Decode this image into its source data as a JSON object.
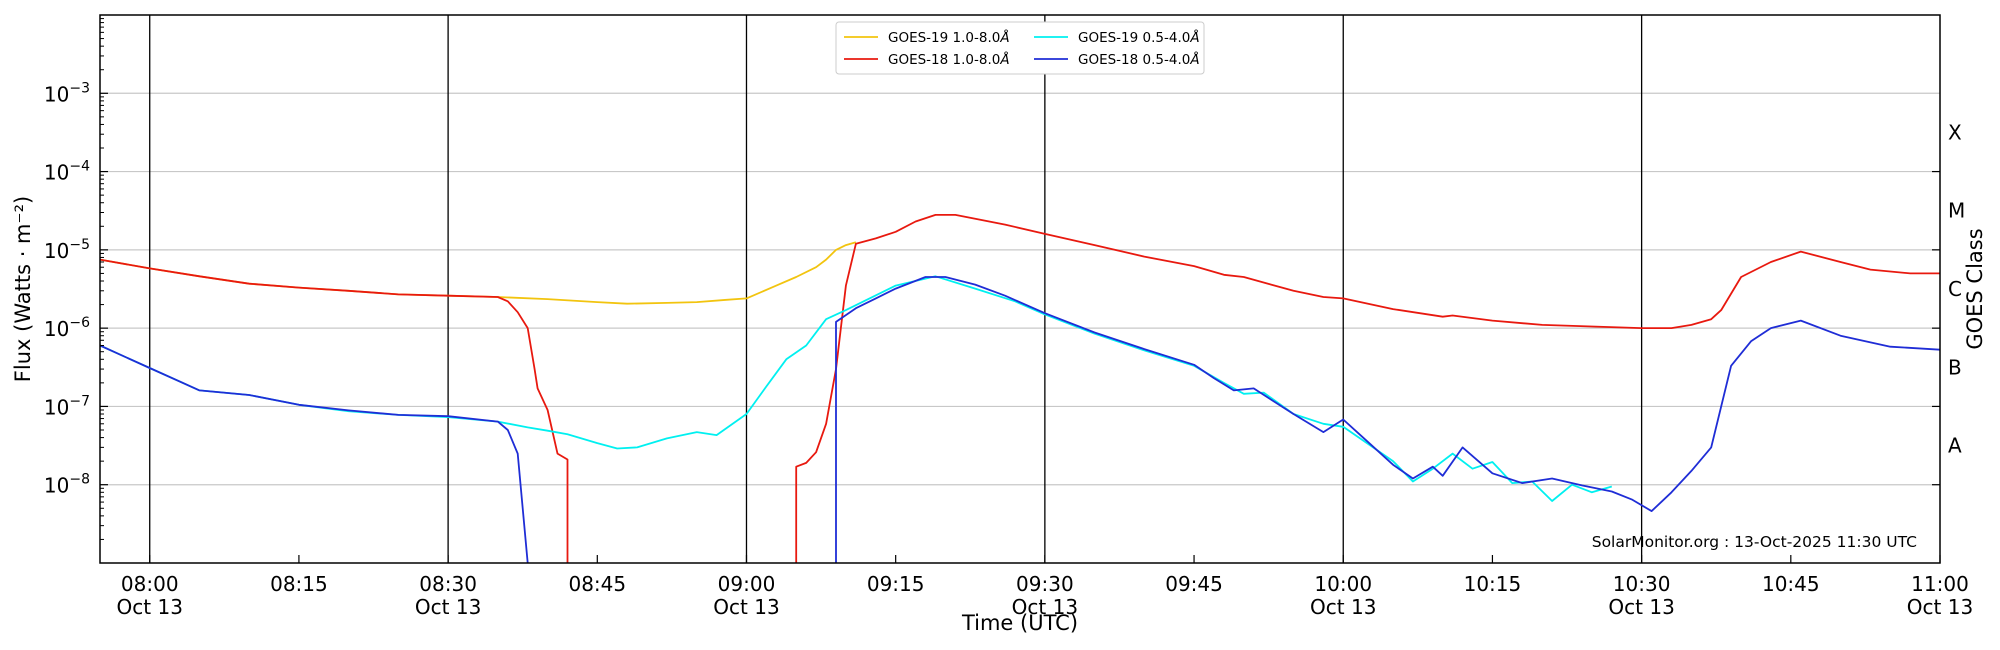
{
  "chart_data": {
    "type": "line",
    "x_range": [
      "2025-10-13T07:55",
      "2025-10-13T11:00"
    ],
    "ylim": [
      1e-09,
      0.01
    ],
    "y_scale": "log",
    "xlabel": "Time (UTC)",
    "ylabel": "Flux (Watts · m⁻²)",
    "y2label": "GOES Class",
    "credit": "SolarMonitor.org : 13-Oct-2025 11:30 UTC",
    "grid": "horizontal at decades",
    "legend_position": "top-center",
    "y_ticks": [
      {
        "exp": -3,
        "base": "10",
        "sup": "−3"
      },
      {
        "exp": -4,
        "base": "10",
        "sup": "−4"
      },
      {
        "exp": -5,
        "base": "10",
        "sup": "−5"
      },
      {
        "exp": -6,
        "base": "10",
        "sup": "−6"
      },
      {
        "exp": -7,
        "base": "10",
        "sup": "−7"
      },
      {
        "exp": -8,
        "base": "10",
        "sup": "−8"
      }
    ],
    "x_ticks": [
      {
        "time": "08:00",
        "label": "08:00",
        "date": "Oct 13",
        "major": true
      },
      {
        "time": "08:15",
        "label": "08:15",
        "date": "",
        "major": false
      },
      {
        "time": "08:30",
        "label": "08:30",
        "date": "Oct 13",
        "major": true
      },
      {
        "time": "08:45",
        "label": "08:45",
        "date": "",
        "major": false
      },
      {
        "time": "09:00",
        "label": "09:00",
        "date": "Oct 13",
        "major": true
      },
      {
        "time": "09:15",
        "label": "09:15",
        "date": "",
        "major": false
      },
      {
        "time": "09:30",
        "label": "09:30",
        "date": "Oct 13",
        "major": true
      },
      {
        "time": "09:45",
        "label": "09:45",
        "date": "",
        "major": false
      },
      {
        "time": "10:00",
        "label": "10:00",
        "date": "Oct 13",
        "major": true
      },
      {
        "time": "10:15",
        "label": "10:15",
        "date": "",
        "major": false
      },
      {
        "time": "10:30",
        "label": "10:30",
        "date": "Oct 13",
        "major": true
      },
      {
        "time": "10:45",
        "label": "10:45",
        "date": "",
        "major": false
      },
      {
        "time": "11:00",
        "label": "11:00",
        "date": "Oct 13",
        "major": true
      }
    ],
    "goes_classes": [
      {
        "label": "X",
        "flux": 0.0001
      },
      {
        "label": "M",
        "flux": 1e-05
      },
      {
        "label": "C",
        "flux": 1e-06
      },
      {
        "label": "B",
        "flux": 1e-07
      },
      {
        "label": "A",
        "flux": 1e-08
      }
    ],
    "series": [
      {
        "name": "GOES-19 1.0-8.0Å",
        "name_base": "GOES-19 1.0-8.0",
        "name_unit": "Å",
        "color": "#f2c40f",
        "points": [
          [
            "07:55",
            7.5e-06
          ],
          [
            "08:00",
            5.8e-06
          ],
          [
            "08:05",
            4.6e-06
          ],
          [
            "08:10",
            3.7e-06
          ],
          [
            "08:15",
            3.3e-06
          ],
          [
            "08:20",
            3e-06
          ],
          [
            "08:25",
            2.7e-06
          ],
          [
            "08:30",
            2.6e-06
          ],
          [
            "08:35",
            2.5e-06
          ],
          [
            "08:40",
            2.35e-06
          ],
          [
            "08:45",
            2.15e-06
          ],
          [
            "08:48",
            2.05e-06
          ],
          [
            "08:52",
            2.1e-06
          ],
          [
            "08:55",
            2.15e-06
          ],
          [
            "08:58",
            2.3e-06
          ],
          [
            "09:00",
            2.4e-06
          ],
          [
            "09:03",
            3.5e-06
          ],
          [
            "09:05",
            4.5e-06
          ],
          [
            "09:07",
            6e-06
          ],
          [
            "09:08",
            7.5e-06
          ],
          [
            "09:09",
            1e-05
          ],
          [
            "09:10",
            1.15e-05
          ],
          [
            "09:11",
            1.25e-05
          ]
        ]
      },
      {
        "name": "GOES-18 1.0-8.0Å",
        "name_base": "GOES-18 1.0-8.0",
        "name_unit": "Å",
        "color": "#e8190f",
        "segments": [
          [
            [
              "07:55",
              7.5e-06
            ],
            [
              "08:00",
              5.8e-06
            ],
            [
              "08:05",
              4.6e-06
            ],
            [
              "08:10",
              3.7e-06
            ],
            [
              "08:15",
              3.3e-06
            ],
            [
              "08:20",
              3e-06
            ],
            [
              "08:25",
              2.7e-06
            ],
            [
              "08:30",
              2.6e-06
            ],
            [
              "08:35",
              2.5e-06
            ],
            [
              "08:36",
              2.2e-06
            ],
            [
              "08:37",
              1.6e-06
            ],
            [
              "08:38",
              1e-06
            ],
            [
              "08:38.7",
              3e-07
            ],
            [
              "08:39",
              1.7e-07
            ],
            [
              "08:40",
              9e-08
            ],
            [
              "08:41",
              2.5e-08
            ],
            [
              "08:42",
              2.1e-08
            ],
            [
              "08:42",
              1e-09
            ]
          ],
          [
            [
              "09:05",
              1e-09
            ],
            [
              "09:05",
              1.7e-08
            ],
            [
              "09:06",
              1.9e-08
            ],
            [
              "09:07",
              2.6e-08
            ],
            [
              "09:08",
              6e-08
            ],
            [
              "09:09",
              3e-07
            ],
            [
              "09:10",
              3.5e-06
            ],
            [
              "09:11",
              1.2e-05
            ],
            [
              "09:13",
              1.4e-05
            ],
            [
              "09:15",
              1.7e-05
            ],
            [
              "09:17",
              2.3e-05
            ],
            [
              "09:19",
              2.8e-05
            ],
            [
              "09:21",
              2.8e-05
            ],
            [
              "09:23",
              2.5e-05
            ],
            [
              "09:26",
              2.1e-05
            ],
            [
              "09:30",
              1.6e-05
            ],
            [
              "09:35",
              1.15e-05
            ],
            [
              "09:40",
              8.2e-06
            ],
            [
              "09:45",
              6.2e-06
            ],
            [
              "09:48",
              4.8e-06
            ],
            [
              "09:50",
              4.5e-06
            ],
            [
              "09:55",
              3e-06
            ],
            [
              "09:58",
              2.5e-06
            ],
            [
              "10:00",
              2.4e-06
            ],
            [
              "10:05",
              1.75e-06
            ],
            [
              "10:10",
              1.4e-06
            ],
            [
              "10:11",
              1.45e-06
            ],
            [
              "10:15",
              1.25e-06
            ],
            [
              "10:20",
              1.1e-06
            ],
            [
              "10:25",
              1.05e-06
            ],
            [
              "10:30",
              1e-06
            ],
            [
              "10:33",
              1e-06
            ],
            [
              "10:35",
              1.1e-06
            ],
            [
              "10:37",
              1.3e-06
            ],
            [
              "10:38",
              1.7e-06
            ],
            [
              "10:40",
              4.5e-06
            ],
            [
              "10:43",
              7e-06
            ],
            [
              "10:46",
              9.5e-06
            ],
            [
              "10:50",
              7e-06
            ],
            [
              "10:53",
              5.6e-06
            ],
            [
              "10:57",
              5e-06
            ],
            [
              "11:00",
              5e-06
            ]
          ]
        ]
      },
      {
        "name": "GOES-19 0.5-4.0Å",
        "name_base": "GOES-19 0.5-4.0",
        "name_unit": "Å",
        "color": "#00f0f0",
        "points": [
          [
            "07:55",
            6e-07
          ],
          [
            "08:00",
            3.1e-07
          ],
          [
            "08:05",
            1.6e-07
          ],
          [
            "08:10",
            1.4e-07
          ],
          [
            "08:15",
            1.05e-07
          ],
          [
            "08:20",
            8.7e-08
          ],
          [
            "08:25",
            7.8e-08
          ],
          [
            "08:30",
            7.3e-08
          ],
          [
            "08:35",
            6.4e-08
          ],
          [
            "08:38",
            5.4e-08
          ],
          [
            "08:40",
            4.9e-08
          ],
          [
            "08:42",
            4.4e-08
          ],
          [
            "08:45",
            3.4e-08
          ],
          [
            "08:47",
            2.9e-08
          ],
          [
            "08:49",
            3e-08
          ],
          [
            "08:52",
            3.9e-08
          ],
          [
            "08:55",
            4.7e-08
          ],
          [
            "08:57",
            4.3e-08
          ],
          [
            "09:00",
            8e-08
          ],
          [
            "09:02",
            1.8e-07
          ],
          [
            "09:04",
            4e-07
          ],
          [
            "09:06",
            6e-07
          ],
          [
            "09:08",
            1.3e-06
          ],
          [
            "09:10",
            1.7e-06
          ],
          [
            "09:15",
            3.5e-06
          ],
          [
            "09:19",
            4.6e-06
          ],
          [
            "09:23",
            3.2e-06
          ],
          [
            "09:27",
            2.2e-06
          ],
          [
            "09:30",
            1.5e-06
          ],
          [
            "09:35",
            8.5e-07
          ],
          [
            "09:40",
            5.2e-07
          ],
          [
            "09:45",
            3.3e-07
          ],
          [
            "09:48",
            2e-07
          ],
          [
            "09:50",
            1.45e-07
          ],
          [
            "09:52",
            1.5e-07
          ],
          [
            "09:55",
            8e-08
          ],
          [
            "09:58",
            6e-08
          ],
          [
            "10:00",
            5.5e-08
          ],
          [
            "10:03",
            3e-08
          ],
          [
            "10:05",
            2e-08
          ],
          [
            "10:07",
            1.1e-08
          ],
          [
            "10:09",
            1.6e-08
          ],
          [
            "10:11",
            2.5e-08
          ],
          [
            "10:13",
            1.6e-08
          ],
          [
            "10:15",
            1.95e-08
          ],
          [
            "10:17",
            1.05e-08
          ],
          [
            "10:19",
            1.1e-08
          ],
          [
            "10:21",
            6.2e-09
          ],
          [
            "10:23",
            1e-08
          ],
          [
            "10:25",
            8e-09
          ],
          [
            "10:27",
            9.5e-09
          ]
        ]
      },
      {
        "name": "GOES-18 0.5-4.0Å",
        "name_base": "GOES-18 0.5-4.0",
        "name_unit": "Å",
        "color": "#1f2dd6",
        "segments": [
          [
            [
              "07:55",
              6e-07
            ],
            [
              "08:00",
              3.1e-07
            ],
            [
              "08:05",
              1.6e-07
            ],
            [
              "08:10",
              1.4e-07
            ],
            [
              "08:15",
              1.05e-07
            ],
            [
              "08:20",
              8.9e-08
            ],
            [
              "08:25",
              7.8e-08
            ],
            [
              "08:30",
              7.5e-08
            ],
            [
              "08:35",
              6.4e-08
            ],
            [
              "08:36",
              5e-08
            ],
            [
              "08:37",
              2.5e-08
            ],
            [
              "08:38",
              1e-09
            ]
          ],
          [
            [
              "09:09",
              1e-09
            ],
            [
              "09:09",
              1.2e-06
            ],
            [
              "09:11",
              1.8e-06
            ],
            [
              "09:13",
              2.4e-06
            ],
            [
              "09:15",
              3.2e-06
            ],
            [
              "09:18",
              4.5e-06
            ],
            [
              "09:20",
              4.5e-06
            ],
            [
              "09:23",
              3.6e-06
            ],
            [
              "09:26",
              2.6e-06
            ],
            [
              "09:30",
              1.55e-06
            ],
            [
              "09:35",
              8.8e-07
            ],
            [
              "09:40",
              5.4e-07
            ],
            [
              "09:45",
              3.4e-07
            ],
            [
              "09:47",
              2.3e-07
            ],
            [
              "09:49",
              1.6e-07
            ],
            [
              "09:51",
              1.7e-07
            ],
            [
              "09:55",
              8e-08
            ],
            [
              "09:58",
              4.7e-08
            ],
            [
              "10:00",
              6.8e-08
            ],
            [
              "10:02",
              4e-08
            ],
            [
              "10:05",
              1.8e-08
            ],
            [
              "10:07",
              1.2e-08
            ],
            [
              "10:09",
              1.7e-08
            ],
            [
              "10:10",
              1.3e-08
            ],
            [
              "10:12",
              3e-08
            ],
            [
              "10:15",
              1.4e-08
            ],
            [
              "10:18",
              1.05e-08
            ],
            [
              "10:21",
              1.2e-08
            ],
            [
              "10:24",
              9.8e-09
            ],
            [
              "10:27",
              8.2e-09
            ],
            [
              "10:29",
              6.5e-09
            ],
            [
              "10:31",
              4.6e-09
            ],
            [
              "10:33",
              8e-09
            ],
            [
              "10:35",
              1.5e-08
            ],
            [
              "10:37",
              3e-08
            ],
            [
              "10:39",
              3.3e-07
            ],
            [
              "10:41",
              6.8e-07
            ],
            [
              "10:43",
              1e-06
            ],
            [
              "10:46",
              1.25e-06
            ],
            [
              "10:50",
              8e-07
            ],
            [
              "10:55",
              5.8e-07
            ],
            [
              "11:00",
              5.3e-07
            ]
          ]
        ]
      }
    ]
  }
}
